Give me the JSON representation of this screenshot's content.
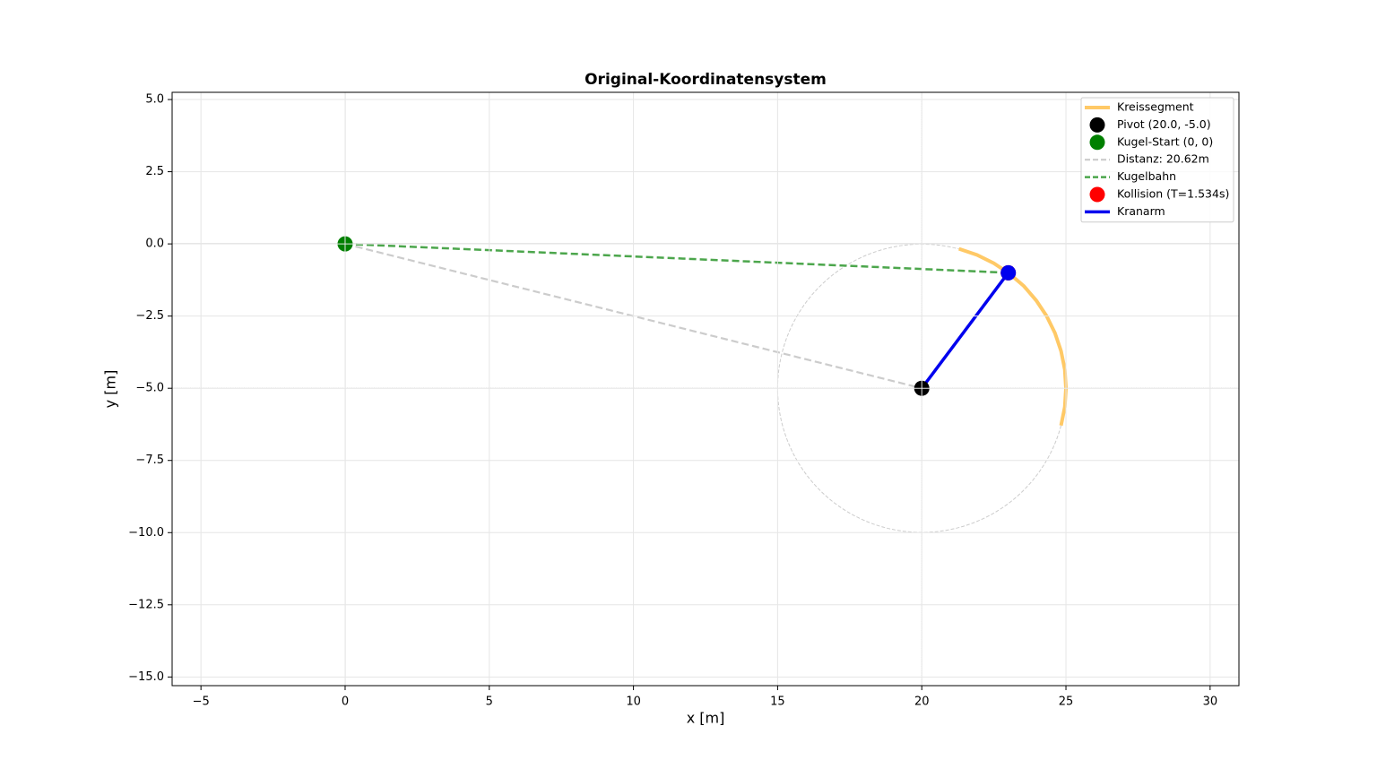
{
  "chart_data": {
    "type": "line",
    "title": "Original-Koordinatensystem",
    "x_label": "x [m]",
    "y_label": "y [m]",
    "xlim": [
      -6,
      31
    ],
    "ylim": [
      -15.3,
      5.25
    ],
    "xticks": [
      {
        "value": -5,
        "label": "−5"
      },
      0,
      5,
      10,
      15,
      20,
      25,
      30
    ],
    "yticks": [
      {
        "value": 5,
        "label": "5.0"
      },
      {
        "value": 2.5,
        "label": "2.5"
      },
      {
        "value": 0,
        "label": "0.0"
      },
      {
        "value": -2.5,
        "label": "−2.5"
      },
      {
        "value": -5,
        "label": "−5.0"
      },
      {
        "value": -7.5,
        "label": "−7.5"
      },
      {
        "value": -10,
        "label": "−10.0"
      },
      {
        "value": -12.5,
        "label": "−12.5"
      },
      {
        "value": -15,
        "label": "−15.0"
      }
    ],
    "grid": true,
    "legend": "upper right",
    "reference_lines": [
      {
        "axis": "y",
        "value": 0,
        "style": "solid"
      },
      {
        "axis": "x",
        "value": 0,
        "style": "solid"
      },
      {
        "axis": "y",
        "value": -5,
        "style": "dotted"
      },
      {
        "axis": "x",
        "value": 20,
        "style": "dotted"
      }
    ],
    "circle": {
      "cx": 20,
      "cy": -5,
      "r": 5,
      "color": "#cccccc"
    },
    "series": [
      {
        "name": "Kreissegment",
        "kind": "line",
        "color": "#ffc966",
        "width": 4,
        "dash": "solid",
        "x": [
          24.83,
          24.96,
          25,
          24.96,
          24.83,
          24.62,
          24.33,
          23.97,
          23.54,
          23.04,
          22.5,
          21.91,
          21.29
        ],
        "values": [
          -6.29,
          -5.65,
          -5,
          -4.35,
          -3.71,
          -3.09,
          -2.5,
          -1.96,
          -1.46,
          -1.03,
          -0.67,
          -0.38,
          -0.17
        ]
      },
      {
        "name": "Pivot (20.0, -5.0)",
        "kind": "point",
        "color": "#000000",
        "x": [
          20
        ],
        "values": [
          -5
        ]
      },
      {
        "name": "Kugel-Start (0, 0)",
        "kind": "point",
        "color": "#008000",
        "x": [
          0
        ],
        "values": [
          0
        ]
      },
      {
        "name": "Distanz: 20.62m",
        "kind": "line",
        "color": "#cccccc",
        "width": 2.2,
        "dash": "dashed",
        "x": [
          0,
          20
        ],
        "values": [
          0,
          -5
        ]
      },
      {
        "name": "Kugelbahn",
        "kind": "line",
        "color": "#4ca64c",
        "width": 2.5,
        "dash": "dashed",
        "x": [
          0,
          23
        ],
        "values": [
          0,
          -1
        ]
      },
      {
        "name": "Kollision (T=1.534s)",
        "kind": "point",
        "color": "#ff0000",
        "x": [
          23
        ],
        "values": [
          -1
        ]
      },
      {
        "name": "Kranarm",
        "kind": "line",
        "color": "#0000ee",
        "width": 3.5,
        "dash": "solid",
        "x": [
          20,
          23
        ],
        "values": [
          -5,
          -1
        ]
      },
      {
        "kind": "point",
        "color": "#0000ee",
        "x": [
          23
        ],
        "values": [
          -1
        ]
      }
    ]
  }
}
